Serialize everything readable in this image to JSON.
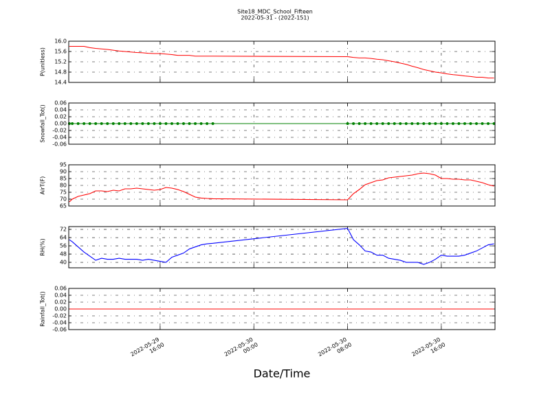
{
  "title": "Site18_MDC_School_Fifteen",
  "subtitle": "2022-05-31 - (2022-151)",
  "xlabel": "Date/Time",
  "chart_data": [
    {
      "type": "line",
      "ylabel": "P(unitless)",
      "ylim": [
        14.4,
        16.0
      ],
      "yticks": [
        14.4,
        14.8,
        15.2,
        15.6,
        {
          "value": 16.0,
          "label": "16.0"
        }
      ],
      "xlim": [
        "2022-05-29 08:12",
        "2022-05-30 20:35"
      ],
      "xticks": [
        "2022-05-29 16:00",
        "2022-05-30 00:00",
        "2022-05-30 08:00",
        "2022-05-30 16:00"
      ],
      "grid": true,
      "x": [
        "2022-05-29 08:15",
        "2022-05-29 08:30",
        "2022-05-29 09:00",
        "2022-05-29 09:30",
        "2022-05-29 10:00",
        "2022-05-29 10:30",
        "2022-05-29 11:00",
        "2022-05-29 11:30",
        "2022-05-29 12:00",
        "2022-05-29 12:30",
        "2022-05-29 13:00",
        "2022-05-29 13:30",
        "2022-05-29 14:00",
        "2022-05-29 14:30",
        "2022-05-29 15:00",
        "2022-05-29 15:30",
        "2022-05-29 16:00",
        "2022-05-29 16:30",
        "2022-05-29 17:00",
        "2022-05-29 17:30",
        "2022-05-29 18:00",
        "2022-05-29 18:30",
        "2022-05-29 19:00",
        "2022-05-29 19:30",
        "2022-05-29 20:00",
        "2022-05-29 20:30",
        "2022-05-30 08:00",
        "2022-05-30 08:30",
        "2022-05-30 09:00",
        "2022-05-30 09:30",
        "2022-05-30 10:00",
        "2022-05-30 10:30",
        "2022-05-30 11:00",
        "2022-05-30 11:30",
        "2022-05-30 12:00",
        "2022-05-30 12:30",
        "2022-05-30 13:00",
        "2022-05-30 13:30",
        "2022-05-30 14:00",
        "2022-05-30 14:30",
        "2022-05-30 15:00",
        "2022-05-30 15:30",
        "2022-05-30 16:00",
        "2022-05-30 16:30",
        "2022-05-30 17:00",
        "2022-05-30 17:30",
        "2022-05-30 18:00",
        "2022-05-30 18:30",
        "2022-05-30 19:00",
        "2022-05-30 19:30",
        "2022-05-30 20:00",
        "2022-05-30 20:30"
      ],
      "series": [
        {
          "color": "#ff0000",
          "marker": false,
          "values": [
            15.8,
            15.8,
            15.8,
            15.8,
            15.75,
            15.72,
            15.7,
            15.68,
            15.65,
            15.62,
            15.6,
            15.58,
            15.56,
            15.55,
            15.53,
            15.52,
            15.52,
            15.5,
            15.48,
            15.45,
            15.45,
            15.45,
            15.42,
            15.42,
            15.42,
            15.42,
            15.4,
            15.37,
            15.35,
            15.35,
            15.33,
            15.3,
            15.28,
            15.24,
            15.2,
            15.15,
            15.1,
            15.03,
            14.97,
            14.9,
            14.85,
            14.8,
            14.77,
            14.73,
            14.7,
            14.68,
            14.65,
            14.63,
            14.6,
            14.6,
            14.57,
            14.57
          ]
        }
      ]
    },
    {
      "type": "line",
      "ylabel": "Snowfall_Tot()",
      "ylim": [
        -0.06,
        0.06
      ],
      "yticks": [
        -0.06,
        -0.04,
        -0.02,
        {
          "value": 0,
          "label": "0.00"
        },
        0.02,
        0.04,
        0.06
      ],
      "xlim": [
        "2022-05-29 08:12",
        "2022-05-30 20:35"
      ],
      "xticks": [
        "2022-05-29 16:00",
        "2022-05-30 00:00",
        "2022-05-30 08:00",
        "2022-05-30 16:00"
      ],
      "grid": true,
      "x": [
        "2022-05-29 08:15",
        "2022-05-29 08:30",
        "2022-05-29 09:00",
        "2022-05-29 09:30",
        "2022-05-29 10:00",
        "2022-05-29 10:30",
        "2022-05-29 11:00",
        "2022-05-29 11:30",
        "2022-05-29 12:00",
        "2022-05-29 12:30",
        "2022-05-29 13:00",
        "2022-05-29 13:30",
        "2022-05-29 14:00",
        "2022-05-29 14:30",
        "2022-05-29 15:00",
        "2022-05-29 15:30",
        "2022-05-29 16:00",
        "2022-05-29 16:30",
        "2022-05-29 17:00",
        "2022-05-29 17:30",
        "2022-05-29 18:00",
        "2022-05-29 18:30",
        "2022-05-29 19:00",
        "2022-05-29 19:30",
        "2022-05-29 20:00",
        "2022-05-29 20:30",
        "2022-05-30 08:00",
        "2022-05-30 08:30",
        "2022-05-30 09:00",
        "2022-05-30 09:30",
        "2022-05-30 10:00",
        "2022-05-30 10:30",
        "2022-05-30 11:00",
        "2022-05-30 11:30",
        "2022-05-30 12:00",
        "2022-05-30 12:30",
        "2022-05-30 13:00",
        "2022-05-30 13:30",
        "2022-05-30 14:00",
        "2022-05-30 14:30",
        "2022-05-30 15:00",
        "2022-05-30 15:30",
        "2022-05-30 16:00",
        "2022-05-30 16:30",
        "2022-05-30 17:00",
        "2022-05-30 17:30",
        "2022-05-30 18:00",
        "2022-05-30 18:30",
        "2022-05-30 19:00",
        "2022-05-30 19:30",
        "2022-05-30 20:00",
        "2022-05-30 20:30"
      ],
      "series": [
        {
          "color": "#008000",
          "marker": true,
          "values": [
            0,
            0,
            0,
            0,
            0,
            0,
            0,
            0,
            0,
            0,
            0,
            0,
            0,
            0,
            0,
            0,
            0,
            0,
            0,
            0,
            0,
            0,
            0,
            0,
            0,
            0,
            0,
            0,
            0,
            0,
            0,
            0,
            0,
            0,
            0,
            0,
            0,
            0,
            0,
            0,
            0,
            0,
            0,
            0,
            0,
            0,
            0,
            0,
            0,
            0,
            0,
            0
          ]
        }
      ]
    },
    {
      "type": "line",
      "ylabel": "AirT(F)",
      "ylim": [
        65,
        95
      ],
      "yticks": [
        65,
        70,
        75,
        80,
        85,
        90,
        95
      ],
      "xlim": [
        "2022-05-29 08:12",
        "2022-05-30 20:35"
      ],
      "xticks": [
        "2022-05-29 16:00",
        "2022-05-30 00:00",
        "2022-05-30 08:00",
        "2022-05-30 16:00"
      ],
      "grid": true,
      "x": [
        "2022-05-29 08:15",
        "2022-05-29 08:30",
        "2022-05-29 09:00",
        "2022-05-29 09:30",
        "2022-05-29 10:00",
        "2022-05-29 10:30",
        "2022-05-29 11:00",
        "2022-05-29 11:30",
        "2022-05-29 12:00",
        "2022-05-29 12:30",
        "2022-05-29 13:00",
        "2022-05-29 13:30",
        "2022-05-29 14:00",
        "2022-05-29 14:30",
        "2022-05-29 15:00",
        "2022-05-29 15:30",
        "2022-05-29 16:00",
        "2022-05-29 16:30",
        "2022-05-29 17:00",
        "2022-05-29 17:30",
        "2022-05-29 18:00",
        "2022-05-29 18:30",
        "2022-05-29 19:00",
        "2022-05-29 19:30",
        "2022-05-29 20:00",
        "2022-05-29 20:30",
        "2022-05-30 08:00",
        "2022-05-30 08:30",
        "2022-05-30 09:00",
        "2022-05-30 09:30",
        "2022-05-30 10:00",
        "2022-05-30 10:30",
        "2022-05-30 11:00",
        "2022-05-30 11:30",
        "2022-05-30 12:00",
        "2022-05-30 12:30",
        "2022-05-30 13:00",
        "2022-05-30 13:30",
        "2022-05-30 14:00",
        "2022-05-30 14:30",
        "2022-05-30 15:00",
        "2022-05-30 15:30",
        "2022-05-30 16:00",
        "2022-05-30 16:30",
        "2022-05-30 17:00",
        "2022-05-30 17:30",
        "2022-05-30 18:00",
        "2022-05-30 18:30",
        "2022-05-30 19:00",
        "2022-05-30 19:30",
        "2022-05-30 20:00",
        "2022-05-30 20:30"
      ],
      "series": [
        {
          "color": "#ff0000",
          "marker": false,
          "values": [
            68,
            70,
            72,
            73,
            74,
            76,
            76,
            75.5,
            76.5,
            76,
            77.5,
            77.5,
            78,
            77.5,
            77,
            76.5,
            77,
            78.5,
            78,
            77,
            75.5,
            73.5,
            71.5,
            70.8,
            70.5,
            70.3,
            69.5,
            74,
            77,
            80.5,
            82,
            83.5,
            84,
            85.5,
            86,
            86.5,
            87,
            87.5,
            88.5,
            89,
            88.5,
            87.5,
            85,
            85,
            84.5,
            84.5,
            84,
            84,
            83,
            82,
            80.5,
            79.5
          ]
        }
      ]
    },
    {
      "type": "line",
      "ylabel": "RH(%)",
      "ylim": [
        34.7,
        74.7
      ],
      "yticks": [
        40,
        48,
        56,
        64,
        72
      ],
      "xlim": [
        "2022-05-29 08:12",
        "2022-05-30 20:35"
      ],
      "xticks": [
        "2022-05-29 16:00",
        "2022-05-30 00:00",
        "2022-05-30 08:00",
        "2022-05-30 16:00"
      ],
      "grid": true,
      "x": [
        "2022-05-29 08:15",
        "2022-05-29 08:30",
        "2022-05-29 09:00",
        "2022-05-29 09:30",
        "2022-05-29 10:00",
        "2022-05-29 10:30",
        "2022-05-29 11:00",
        "2022-05-29 11:30",
        "2022-05-29 12:00",
        "2022-05-29 12:30",
        "2022-05-29 13:00",
        "2022-05-29 13:30",
        "2022-05-29 14:00",
        "2022-05-29 14:30",
        "2022-05-29 15:00",
        "2022-05-29 15:30",
        "2022-05-29 16:00",
        "2022-05-29 16:30",
        "2022-05-29 17:00",
        "2022-05-29 17:30",
        "2022-05-29 18:00",
        "2022-05-29 18:30",
        "2022-05-29 19:00",
        "2022-05-29 19:30",
        "2022-05-29 20:00",
        "2022-05-29 20:30",
        "2022-05-30 08:00",
        "2022-05-30 08:30",
        "2022-05-30 09:00",
        "2022-05-30 09:30",
        "2022-05-30 10:00",
        "2022-05-30 10:30",
        "2022-05-30 11:00",
        "2022-05-30 11:30",
        "2022-05-30 12:00",
        "2022-05-30 12:30",
        "2022-05-30 13:00",
        "2022-05-30 13:30",
        "2022-05-30 14:00",
        "2022-05-30 14:30",
        "2022-05-30 15:00",
        "2022-05-30 15:30",
        "2022-05-30 16:00",
        "2022-05-30 16:30",
        "2022-05-30 17:00",
        "2022-05-30 17:30",
        "2022-05-30 18:00",
        "2022-05-30 18:30",
        "2022-05-30 19:00",
        "2022-05-30 19:30",
        "2022-05-30 20:00",
        "2022-05-30 20:30"
      ],
      "series": [
        {
          "color": "#0000ff",
          "marker": false,
          "values": [
            62,
            60,
            55,
            50,
            46,
            42,
            44,
            43,
            43,
            44,
            43,
            43,
            43,
            42,
            43,
            42,
            41,
            40,
            45,
            47,
            49,
            53,
            55,
            57,
            58,
            58.5,
            73,
            62,
            57,
            51,
            50,
            47,
            47,
            44,
            43,
            42,
            40,
            40,
            40,
            38,
            40,
            43,
            47,
            46,
            46,
            46,
            47,
            49,
            51,
            54,
            57,
            58
          ]
        }
      ]
    },
    {
      "type": "line",
      "ylabel": "Rainfall_Tot()",
      "ylim": [
        -0.06,
        0.06
      ],
      "yticks": [
        -0.06,
        -0.04,
        -0.02,
        {
          "value": 0,
          "label": "0.00"
        },
        0.02,
        0.04,
        0.06
      ],
      "xlim": [
        "2022-05-29 08:12",
        "2022-05-30 20:35"
      ],
      "xticks": [
        "2022-05-29 16:00",
        "2022-05-30 00:00",
        "2022-05-30 08:00",
        "2022-05-30 16:00"
      ],
      "grid": true,
      "x": [
        "2022-05-29 08:15",
        "2022-05-29 08:30",
        "2022-05-29 09:00",
        "2022-05-29 09:30",
        "2022-05-29 10:00",
        "2022-05-29 10:30",
        "2022-05-29 11:00",
        "2022-05-29 11:30",
        "2022-05-29 12:00",
        "2022-05-29 12:30",
        "2022-05-29 13:00",
        "2022-05-29 13:30",
        "2022-05-29 14:00",
        "2022-05-29 14:30",
        "2022-05-29 15:00",
        "2022-05-29 15:30",
        "2022-05-29 16:00",
        "2022-05-29 16:30",
        "2022-05-29 17:00",
        "2022-05-29 17:30",
        "2022-05-29 18:00",
        "2022-05-29 18:30",
        "2022-05-29 19:00",
        "2022-05-29 19:30",
        "2022-05-29 20:00",
        "2022-05-29 20:30",
        "2022-05-30 08:00",
        "2022-05-30 08:30",
        "2022-05-30 09:00",
        "2022-05-30 09:30",
        "2022-05-30 10:00",
        "2022-05-30 10:30",
        "2022-05-30 11:00",
        "2022-05-30 11:30",
        "2022-05-30 12:00",
        "2022-05-30 12:30",
        "2022-05-30 13:00",
        "2022-05-30 13:30",
        "2022-05-30 14:00",
        "2022-05-30 14:30",
        "2022-05-30 15:00",
        "2022-05-30 15:30",
        "2022-05-30 16:00",
        "2022-05-30 16:30",
        "2022-05-30 17:00",
        "2022-05-30 17:30",
        "2022-05-30 18:00",
        "2022-05-30 18:30",
        "2022-05-30 19:00",
        "2022-05-30 19:30",
        "2022-05-30 20:00",
        "2022-05-30 20:30"
      ],
      "series": [
        {
          "color": "#ff0000",
          "marker": false,
          "values": [
            0,
            0,
            0,
            0,
            0,
            0,
            0,
            0,
            0,
            0,
            0,
            0,
            0,
            0,
            0,
            0,
            0,
            0,
            0,
            0,
            0,
            0,
            0,
            0,
            0,
            0,
            0,
            0,
            0,
            0,
            0,
            0,
            0,
            0,
            0,
            0,
            0,
            0,
            0,
            0,
            0,
            0,
            0,
            0,
            0,
            0,
            0,
            0,
            0,
            0,
            0,
            0
          ]
        }
      ]
    }
  ]
}
